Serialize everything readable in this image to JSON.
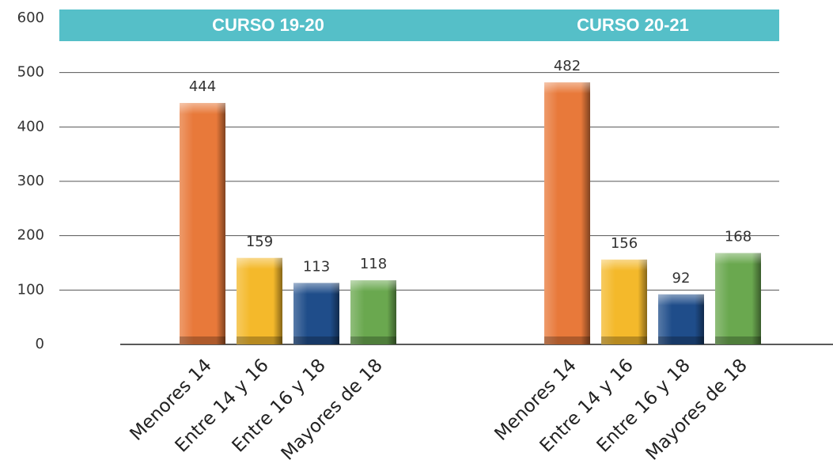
{
  "chart_data": {
    "type": "bar",
    "ylim": [
      0,
      600
    ],
    "yticks": [
      0,
      100,
      200,
      300,
      400,
      500,
      600
    ],
    "grid": true,
    "colors": [
      "#e8793a",
      "#f4b92b",
      "#1f4d8a",
      "#6aa84f"
    ],
    "groups": [
      {
        "title": "CURSO 19-20",
        "categories": [
          "Menores 14",
          "Entre 14 y 16",
          "Entre 16 y 18",
          "Mayores de 18"
        ],
        "values": [
          444,
          159,
          113,
          118
        ]
      },
      {
        "title": "CURSO 20-21",
        "categories": [
          "Menores 14",
          "Entre 14 y 16",
          "Entre 16 y 18",
          "Mayores de 18"
        ],
        "values": [
          482,
          156,
          92,
          168
        ]
      }
    ]
  }
}
